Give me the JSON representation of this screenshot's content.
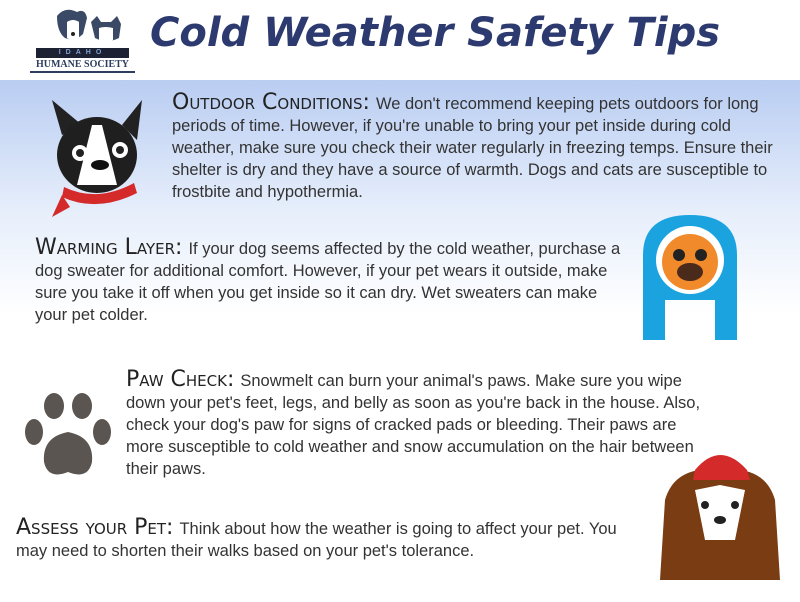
{
  "header": {
    "title": "Cold Weather Safety Tips",
    "logo": {
      "line1": "IDAHO",
      "line2": "HUMANE SOCIETY"
    }
  },
  "sections": [
    {
      "heading": "Outdoor Conditions:",
      "text": "We don't recommend keeping pets outdoors for long periods of time. However, if you're unable to bring your pet inside during cold weather, make sure you check their water regularly in freezing temps. Ensure their shelter is dry and they have a source of warmth. Dogs and cats are susceptible to frostbite and hypothermia."
    },
    {
      "heading": "Warming Layer:",
      "text": "If your dog seems affected by the cold weather, purchase a dog sweater for additional comfort. However, if your pet wears it outside, make sure you take it off when you get inside so it can dry. Wet sweaters can make your pet colder."
    },
    {
      "heading": "Paw Check:",
      "text": "Snowmelt can burn your animal's paws. Make sure you wipe down your pet's feet, legs, and belly as soon as you're back in the house. Also, check your dog's paw for signs of cracked pads or bleeding. Their paws are more susceptible to cold weather and snow accumulation on the hair between their paws."
    },
    {
      "heading": "Assess your Pet:",
      "text": "Think about how the weather is going to affect your pet. You may need to shorten their walks based on your pet's tolerance."
    }
  ],
  "colors": {
    "title": "#2c3a70",
    "band": "#b9cdf2",
    "hood": "#1ba3e0",
    "scarf": "#d42a2a",
    "paw": "#5a5550"
  }
}
